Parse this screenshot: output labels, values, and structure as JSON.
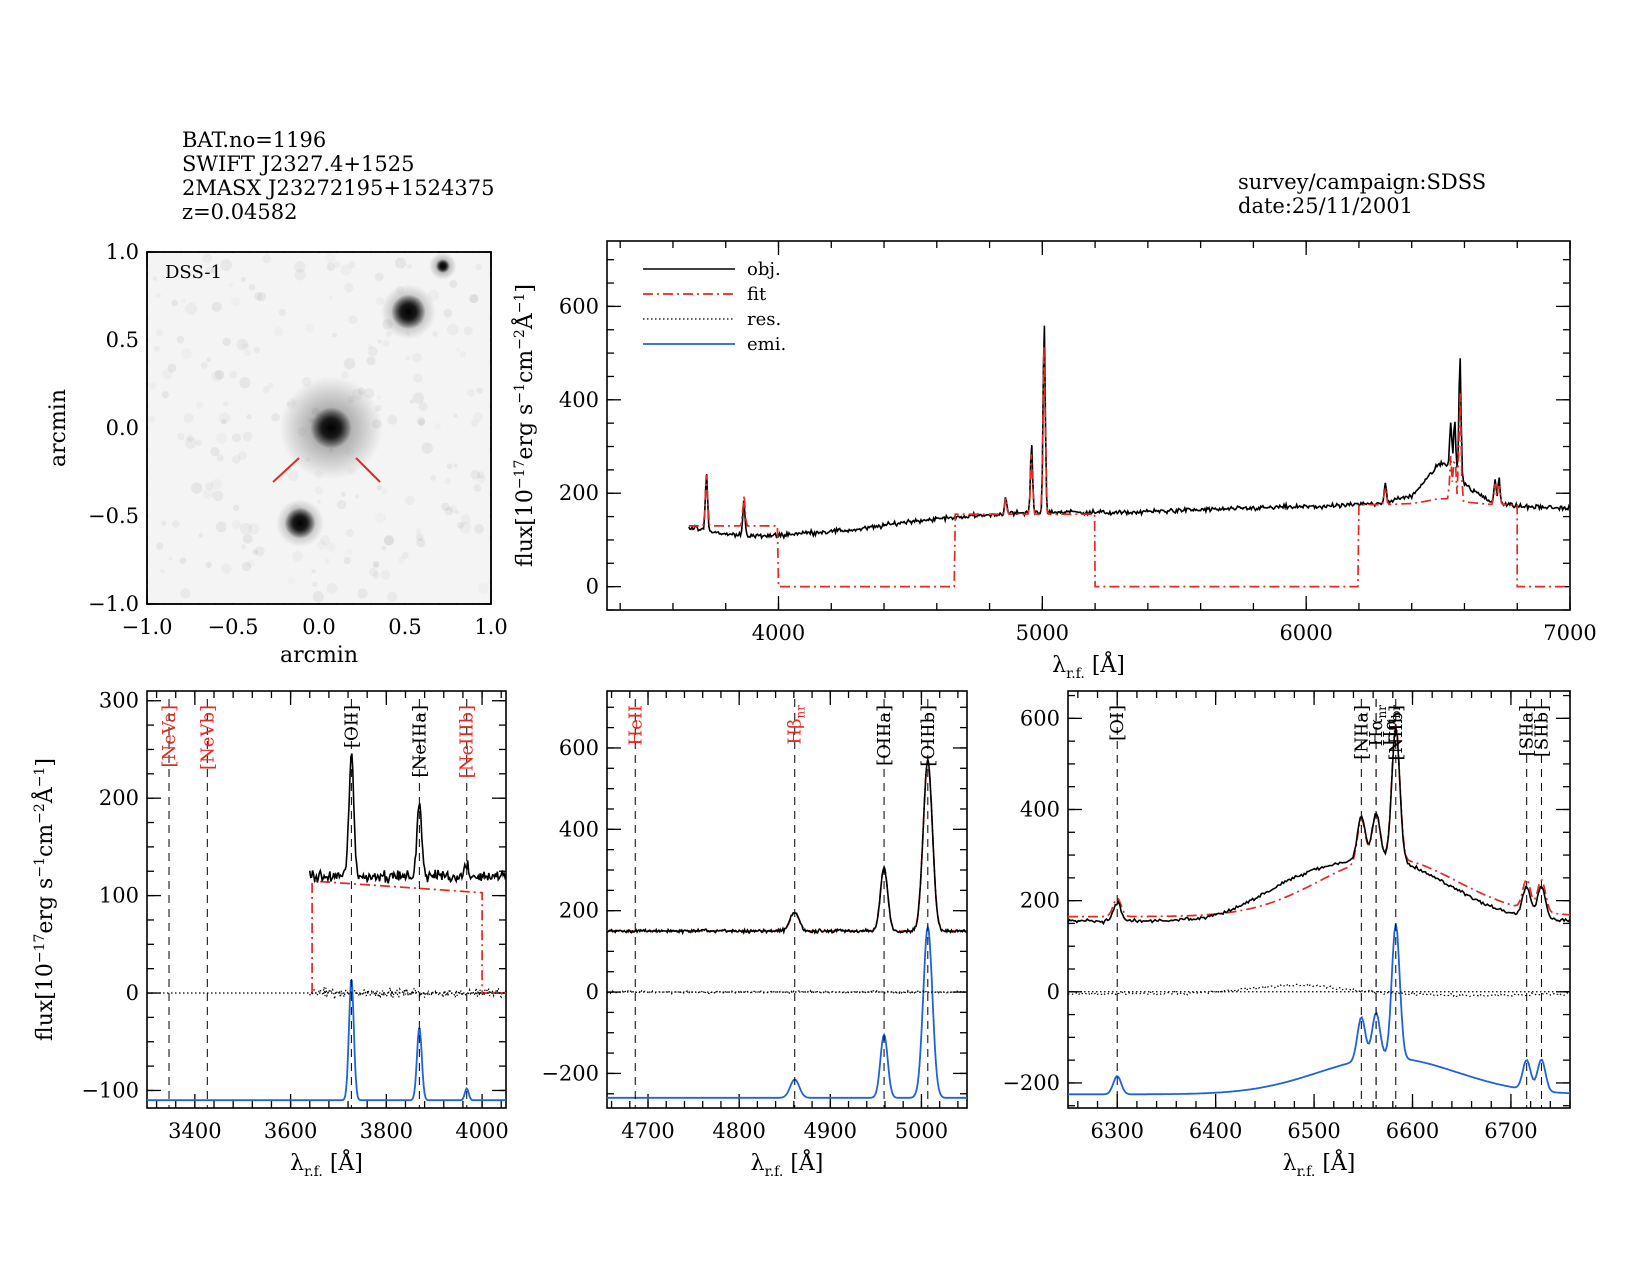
{
  "header": {
    "left": [
      "BAT.no=1196",
      "SWIFT J2327.4+1525",
      "2MASX J23272195+1524375",
      "z=0.04582"
    ],
    "right": [
      "survey/campaign:SDSS",
      "date:25/11/2001"
    ]
  },
  "colors": {
    "obj": "#000000",
    "fit": "#e32a22",
    "res": "#000000",
    "emi": "#1e63d8",
    "marker_red": "#e32a22"
  },
  "legend": [
    {
      "label": "obj.",
      "style": "obj"
    },
    {
      "label": "fit",
      "style": "fit"
    },
    {
      "label": "res.",
      "style": "res"
    },
    {
      "label": "emi.",
      "style": "emi"
    }
  ],
  "chart_data": [
    {
      "type": "image",
      "id": "dss",
      "title": "DSS-1",
      "xlabel": "arcmin",
      "ylabel": "arcmin",
      "xlim": [
        -1.0,
        1.0
      ],
      "ylim": [
        -1.0,
        1.0
      ],
      "xticks": [
        -1.0,
        -0.5,
        0.0,
        0.5,
        1.0
      ],
      "yticks": [
        -1.0,
        -0.5,
        0.0,
        0.5,
        1.0
      ],
      "xtick_labels": [
        "−1.0",
        "−0.5",
        "0.0",
        "0.5",
        "1.0"
      ],
      "ytick_labels": [
        "−1.0",
        "−0.5",
        "0.0",
        "0.5",
        "1.0"
      ],
      "sources": [
        {
          "x": 0.07,
          "y": 0.0,
          "r": 0.12,
          "halo": 0.3
        },
        {
          "x": 0.52,
          "y": 0.66,
          "r": 0.1,
          "halo": 0.16
        },
        {
          "x": -0.11,
          "y": -0.54,
          "r": 0.09,
          "halo": 0.14
        },
        {
          "x": 0.72,
          "y": 0.92,
          "r": 0.04,
          "halo": 0.08
        }
      ]
    },
    {
      "type": "line",
      "id": "full",
      "xlabel": "λ",
      "xlabel_sub": "r.f.",
      "xlabel_unit": "[Å]",
      "ylabel": "flux[10",
      "ylabel_sup1": "−17",
      "ylabel_mid": "erg s",
      "ylabel_sup2": "−1",
      "ylabel_mid2": "cm",
      "ylabel_sup3": "−2",
      "ylabel_end": "Å",
      "ylabel_sup4": "−1",
      "ylabel_close": "]",
      "xlim": [
        3350,
        7000
      ],
      "ylim": [
        -50,
        740
      ],
      "xticks": [
        4000,
        5000,
        6000,
        7000
      ],
      "yticks": [
        0,
        200,
        400,
        600
      ],
      "continuum": [
        [
          3650,
          128
        ],
        [
          3800,
          112
        ],
        [
          3950,
          108
        ],
        [
          4100,
          115
        ],
        [
          4300,
          122
        ],
        [
          4500,
          140
        ],
        [
          4700,
          150
        ],
        [
          4900,
          157
        ],
        [
          5100,
          160
        ],
        [
          5300,
          158
        ],
        [
          5500,
          163
        ],
        [
          5700,
          166
        ],
        [
          5900,
          170
        ],
        [
          6100,
          172
        ],
        [
          6300,
          180
        ],
        [
          6400,
          195
        ],
        [
          6450,
          225
        ],
        [
          6500,
          262
        ],
        [
          6530,
          262
        ],
        [
          6560,
          245
        ],
        [
          6620,
          210
        ],
        [
          6700,
          182
        ],
        [
          6800,
          172
        ],
        [
          7000,
          168
        ]
      ],
      "fit_segments": [
        [
          3660,
          4000,
          130
        ],
        [
          4000,
          4670,
          0
        ],
        [
          4670,
          5200,
          155
        ],
        [
          5200,
          6200,
          0
        ],
        [
          6200,
          6800,
          175
        ],
        [
          6800,
          7000,
          0
        ]
      ],
      "peaks": [
        [
          3727,
          245
        ],
        [
          3869,
          185
        ],
        [
          4861,
          195
        ],
        [
          4959,
          305
        ],
        [
          5007,
          572
        ],
        [
          6300,
          225
        ],
        [
          6548,
          355
        ],
        [
          6563,
          360
        ],
        [
          6583,
          495
        ],
        [
          6716,
          230
        ],
        [
          6731,
          235
        ]
      ]
    },
    {
      "type": "line",
      "id": "blue",
      "xlabel": "λ",
      "xlabel_sub": "r.f.",
      "xlabel_unit": "[Å]",
      "xlim": [
        3300,
        4050
      ],
      "ylim": [
        -118,
        310
      ],
      "xticks": [
        3400,
        3600,
        3800,
        4000
      ],
      "yticks": [
        -100,
        0,
        100,
        200,
        300
      ],
      "ytick_labels": [
        "−100",
        "0",
        "100",
        "200",
        "300"
      ],
      "obj_range": [
        3640,
        4050
      ],
      "obj_base": 120,
      "fit_box": [
        3645,
        4000,
        115
      ],
      "emi_base": -110,
      "lines": [
        {
          "x": 3346,
          "label": "[NeVa]",
          "color": "red"
        },
        {
          "x": 3426,
          "label": "[NeVb]",
          "color": "red"
        },
        {
          "x": 3727,
          "label": "[OII]",
          "color": "black"
        },
        {
          "x": 3869,
          "label": "[NeIIIa]",
          "color": "black"
        },
        {
          "x": 3968,
          "label": "[NeIIIb]",
          "color": "red"
        }
      ],
      "peaks": [
        [
          3727,
          125,
          5
        ],
        [
          3869,
          75,
          5
        ],
        [
          3968,
          12,
          4
        ]
      ]
    },
    {
      "type": "line",
      "id": "hbeta",
      "xlabel": "λ",
      "xlabel_sub": "r.f.",
      "xlabel_unit": "[Å]",
      "xlim": [
        4655,
        5050
      ],
      "ylim": [
        -285,
        740
      ],
      "xticks": [
        4700,
        4800,
        4900,
        5000
      ],
      "yticks": [
        -200,
        0,
        200,
        400,
        600
      ],
      "ytick_labels": [
        "−200",
        "0",
        "200",
        "400",
        "600"
      ],
      "obj_base": 150,
      "emi_base": -260,
      "lines": [
        {
          "x": 4686,
          "label": "HeII",
          "color": "red"
        },
        {
          "x": 4861,
          "label": "Hβ",
          "sub": "nr",
          "color": "red"
        },
        {
          "x": 4959,
          "label": "[OIIIa]",
          "color": "black"
        },
        {
          "x": 5007,
          "label": "[OIIIb]",
          "color": "black"
        }
      ],
      "peaks": [
        [
          4861,
          45,
          5
        ],
        [
          4959,
          155,
          4
        ],
        [
          5007,
          420,
          5
        ]
      ]
    },
    {
      "type": "line",
      "id": "halpha",
      "xlabel": "λ",
      "xlabel_sub": "r.f.",
      "xlabel_unit": "[Å]",
      "xlim": [
        6250,
        6760
      ],
      "ylim": [
        -255,
        660
      ],
      "xticks": [
        6300,
        6400,
        6500,
        6600,
        6700
      ],
      "yticks": [
        -200,
        0,
        200,
        400,
        600
      ],
      "ytick_labels": [
        "−200",
        "0",
        "200",
        "400",
        "600"
      ],
      "obj_base": 165,
      "emi_base": -225,
      "broad": {
        "center": 6575,
        "amp": 80,
        "sigma": 70
      },
      "lines": [
        {
          "x": 6300,
          "label": "[OI]",
          "color": "black"
        },
        {
          "x": 6548,
          "label": "[NIIa]",
          "color": "black"
        },
        {
          "x": 6563,
          "label": "Hα",
          "sub": "nr",
          "color": "black"
        },
        {
          "x": 6563,
          "label": "Hα",
          "sub": "br",
          "color": "black",
          "offset": 14
        },
        {
          "x": 6583,
          "label": "[NIIb]",
          "color": "black"
        },
        {
          "x": 6716,
          "label": "[SIIa]",
          "color": "black"
        },
        {
          "x": 6731,
          "label": "[SIIb]",
          "color": "black"
        }
      ],
      "peaks": [
        [
          6300,
          40,
          4
        ],
        [
          6548,
          95,
          4
        ],
        [
          6563,
          100,
          4
        ],
        [
          6583,
          295,
          4
        ],
        [
          6716,
          65,
          4
        ],
        [
          6731,
          70,
          4
        ]
      ]
    }
  ]
}
